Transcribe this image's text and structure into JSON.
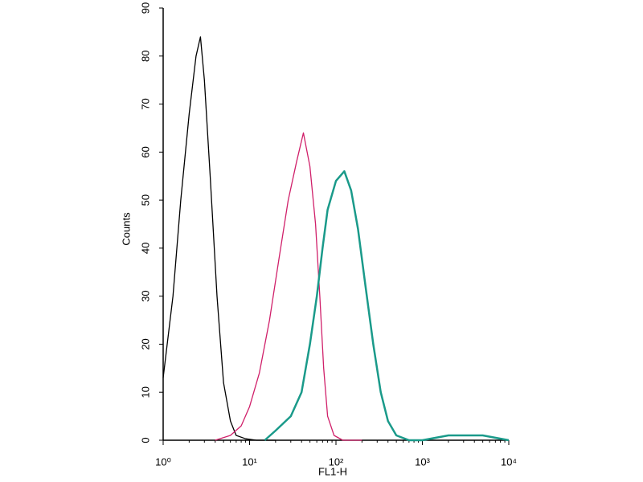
{
  "chart_data": {
    "type": "line",
    "xlabel": "FL1-H",
    "ylabel": "Counts",
    "xscale": "log",
    "xlim": [
      1,
      10000
    ],
    "xticks": [
      {
        "value": 1,
        "label": "10⁰"
      },
      {
        "value": 10,
        "label": "10¹"
      },
      {
        "value": 100,
        "label": "10²"
      },
      {
        "value": 1000,
        "label": "10³"
      },
      {
        "value": 10000,
        "label": "10⁴"
      }
    ],
    "ylim": [
      0,
      90
    ],
    "yticks": [
      0,
      10,
      20,
      30,
      40,
      50,
      60,
      70,
      80,
      90
    ],
    "series": [
      {
        "color": "#000000",
        "x": [
          1,
          1.3,
          1.6,
          2.0,
          2.4,
          2.7,
          3.0,
          3.5,
          4.2,
          5,
          6,
          7,
          9,
          12,
          20
        ],
        "values": [
          13,
          30,
          50,
          68,
          80,
          84,
          75,
          55,
          30,
          12,
          4,
          1,
          0.3,
          0,
          0
        ]
      },
      {
        "color": "#d0206a",
        "x": [
          4,
          6,
          8,
          10,
          13,
          17,
          22,
          28,
          35,
          42,
          50,
          58,
          65,
          72,
          80,
          95,
          120,
          200
        ],
        "values": [
          0,
          1,
          3,
          7,
          14,
          25,
          38,
          50,
          58,
          64,
          57,
          45,
          30,
          15,
          5,
          1,
          0,
          0
        ]
      },
      {
        "color": "#1a9a8a",
        "x": [
          15,
          20,
          30,
          40,
          50,
          60,
          70,
          80,
          100,
          125,
          150,
          180,
          220,
          270,
          330,
          400,
          500,
          700,
          1000,
          2000,
          5000,
          10000
        ],
        "values": [
          0,
          2,
          5,
          10,
          20,
          30,
          40,
          48,
          54,
          56,
          52,
          44,
          32,
          20,
          10,
          4,
          1,
          0,
          0,
          1,
          1,
          0
        ]
      }
    ]
  }
}
